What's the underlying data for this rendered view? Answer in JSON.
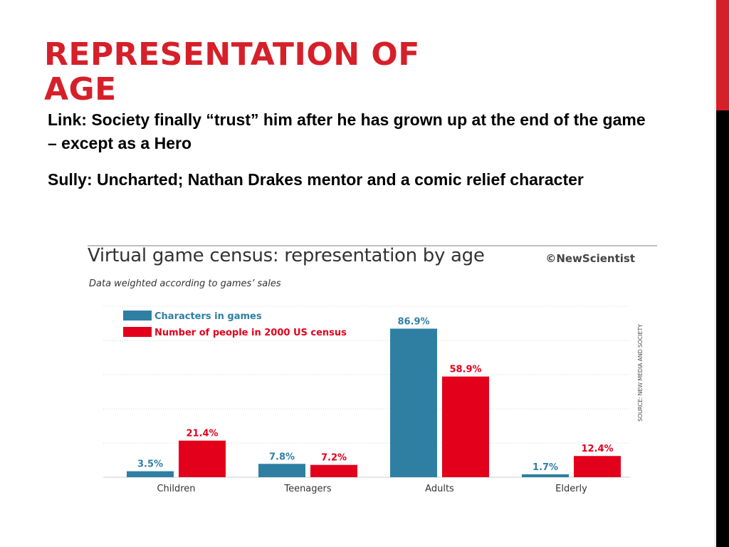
{
  "slide": {
    "title": "REPRESENTATION OF AGE",
    "paragraphs": [
      "Link: Society finally “trust” him after he has grown up at the end of the game – except as a Hero",
      "Sully: Uncharted; Nathan Drakes mentor and a comic relief character"
    ],
    "accent_color": "#d5202a"
  },
  "chart_header": {
    "title": "Virtual game census: representation by age",
    "credit": "©NewScientist",
    "subtitle": "Data weighted according to games’ sales",
    "source": "SOURCE: NEW MEDIA AND SOCIETY"
  },
  "chart_data": {
    "type": "bar",
    "categories": [
      "Children",
      "Teenagers",
      "Adults",
      "Elderly"
    ],
    "series": [
      {
        "name": "Characters in games",
        "values": [
          3.5,
          7.8,
          86.9,
          1.7
        ],
        "labels": [
          "3.5%",
          "7.8%",
          "86.9%",
          "1.7%"
        ],
        "color": "#2f7fa3",
        "label_color": "#2f7fa3"
      },
      {
        "name": "Number of people in 2000 US census",
        "values": [
          21.4,
          7.2,
          58.9,
          12.4
        ],
        "labels": [
          "21.4%",
          "7.2%",
          "58.9%",
          "12.4%"
        ],
        "color": "#e3001b",
        "label_color": "#e3001b"
      }
    ],
    "ylim": [
      0,
      100
    ],
    "grid": true,
    "legend_position": "top-left"
  }
}
